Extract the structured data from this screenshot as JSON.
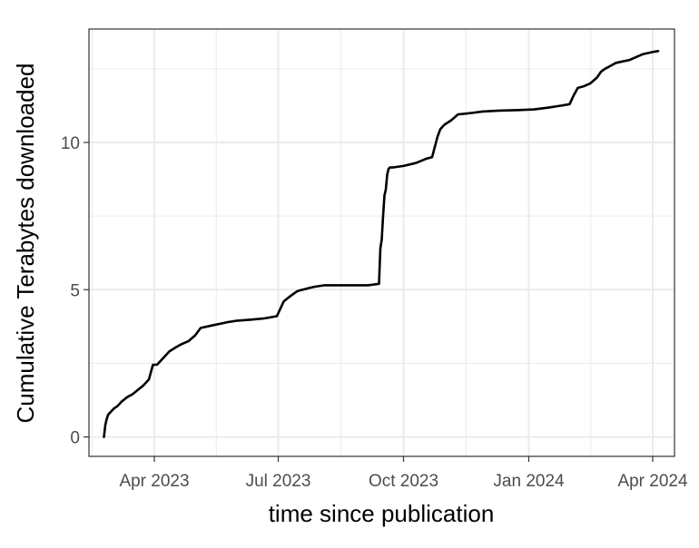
{
  "chart_data": {
    "type": "line",
    "title": "",
    "xlabel": "time since publication",
    "ylabel": "Cumulative Terabytes downloaded",
    "x_ticks": [
      {
        "date": "2023-04-01",
        "label": "Apr 2023"
      },
      {
        "date": "2023-07-01",
        "label": "Jul 2023"
      },
      {
        "date": "2023-10-01",
        "label": "Oct 2023"
      },
      {
        "date": "2024-01-01",
        "label": "Jan 2024"
      },
      {
        "date": "2024-04-01",
        "label": "Apr 2024"
      }
    ],
    "y_ticks": [
      0,
      5,
      10
    ],
    "xlim": [
      "2023-02-12",
      "2024-04-17"
    ],
    "ylim": [
      -0.66,
      13.85
    ],
    "grid": true,
    "colors": {
      "line": "#000000",
      "grid": "#ebebeb",
      "panel_border": "#333333"
    },
    "series": [
      {
        "x": [
          "2023-02-23",
          "2023-02-24",
          "2023-02-25",
          "2023-02-26",
          "2023-02-28",
          "2023-03-02",
          "2023-03-05",
          "2023-03-08",
          "2023-03-12",
          "2023-03-16",
          "2023-03-20",
          "2023-03-24",
          "2023-03-28",
          "2023-03-31",
          "2023-04-03",
          "2023-04-08",
          "2023-04-12",
          "2023-04-17",
          "2023-04-21",
          "2023-04-26",
          "2023-05-01",
          "2023-05-05",
          "2023-05-10",
          "2023-05-15",
          "2023-05-20",
          "2023-05-25",
          "2023-06-01",
          "2023-06-10",
          "2023-06-20",
          "2023-06-30",
          "2023-07-05",
          "2023-07-09",
          "2023-07-12",
          "2023-07-15",
          "2023-07-19",
          "2023-07-23",
          "2023-07-28",
          "2023-08-04",
          "2023-08-15",
          "2023-08-25",
          "2023-09-05",
          "2023-09-13",
          "2023-09-14",
          "2023-09-15",
          "2023-09-16",
          "2023-09-17",
          "2023-09-18",
          "2023-09-19",
          "2023-09-20",
          "2023-09-21",
          "2023-09-23",
          "2023-10-01",
          "2023-10-10",
          "2023-10-18",
          "2023-10-22",
          "2023-10-26",
          "2023-10-28",
          "2023-10-31",
          "2023-11-05",
          "2023-11-10",
          "2023-11-16",
          "2023-11-20",
          "2023-11-28",
          "2023-12-10",
          "2023-12-25",
          "2024-01-05",
          "2024-01-15",
          "2024-01-25",
          "2024-01-31",
          "2024-02-03",
          "2024-02-06",
          "2024-02-10",
          "2024-02-15",
          "2024-02-20",
          "2024-02-23",
          "2024-02-26",
          "2024-03-01",
          "2024-03-05",
          "2024-03-10",
          "2024-03-15",
          "2024-03-20",
          "2024-03-25",
          "2024-03-30",
          "2024-04-02",
          "2024-04-05"
        ],
        "y": [
          0.0,
          0.4,
          0.6,
          0.75,
          0.85,
          0.95,
          1.05,
          1.2,
          1.35,
          1.45,
          1.6,
          1.75,
          1.95,
          2.45,
          2.45,
          2.7,
          2.9,
          3.05,
          3.15,
          3.25,
          3.45,
          3.7,
          3.75,
          3.8,
          3.85,
          3.9,
          3.95,
          3.98,
          4.02,
          4.1,
          4.6,
          4.75,
          4.85,
          4.95,
          5.0,
          5.05,
          5.1,
          5.15,
          5.15,
          5.15,
          5.15,
          5.2,
          6.4,
          6.7,
          7.5,
          8.2,
          8.4,
          8.9,
          9.1,
          9.15,
          9.15,
          9.2,
          9.3,
          9.45,
          9.5,
          10.2,
          10.45,
          10.6,
          10.75,
          10.95,
          10.98,
          11.0,
          11.05,
          11.08,
          11.1,
          11.12,
          11.18,
          11.25,
          11.3,
          11.6,
          11.85,
          11.9,
          12.0,
          12.2,
          12.4,
          12.5,
          12.6,
          12.7,
          12.75,
          12.8,
          12.9,
          13.0,
          13.05,
          13.08,
          13.1
        ]
      }
    ]
  }
}
